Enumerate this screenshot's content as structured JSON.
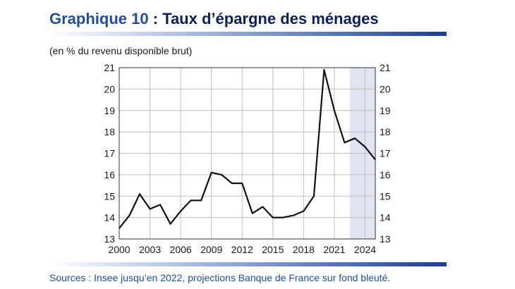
{
  "header": {
    "title_main": "Graphique 10",
    "title_rest": " : Taux d’épargne des ménages",
    "subtitle": "(en % du revenu disponible brut)"
  },
  "footer": {
    "source": "Sources : Insee jusqu’en 2022, projections Banque de France sur fond bleuté."
  },
  "colors": {
    "line": "#111111",
    "projection_shade": "#e1e4f1",
    "grid": "#bfbfbf",
    "title": "#0b1f5c",
    "accent": "#1c3f94"
  },
  "chart_data": {
    "type": "line",
    "title": "",
    "xlabel": "",
    "ylabel": "",
    "xlim": [
      2000,
      2025
    ],
    "ylim": [
      13,
      21
    ],
    "x_ticks": [
      2000,
      2003,
      2006,
      2009,
      2012,
      2015,
      2018,
      2021,
      2024
    ],
    "y_ticks": [
      13,
      14,
      15,
      16,
      17,
      18,
      19,
      20,
      21
    ],
    "grid": true,
    "shaded_region": {
      "x_start": 2022.5,
      "x_end": 2025
    },
    "series": [
      {
        "x": [
          2000,
          2001,
          2002,
          2003,
          2004,
          2005,
          2006,
          2007,
          2008,
          2009,
          2010,
          2011,
          2012,
          2013,
          2014,
          2015,
          2016,
          2017,
          2018,
          2019,
          2020,
          2021,
          2022,
          2023,
          2024,
          2025
        ],
        "values": [
          13.5,
          14.1,
          15.1,
          14.4,
          14.6,
          13.7,
          14.3,
          14.8,
          14.8,
          16.1,
          16.0,
          15.6,
          15.6,
          14.2,
          14.5,
          14.0,
          14.0,
          14.1,
          14.3,
          15.0,
          20.9,
          19.0,
          17.5,
          17.7,
          17.3,
          16.7
        ]
      }
    ]
  }
}
